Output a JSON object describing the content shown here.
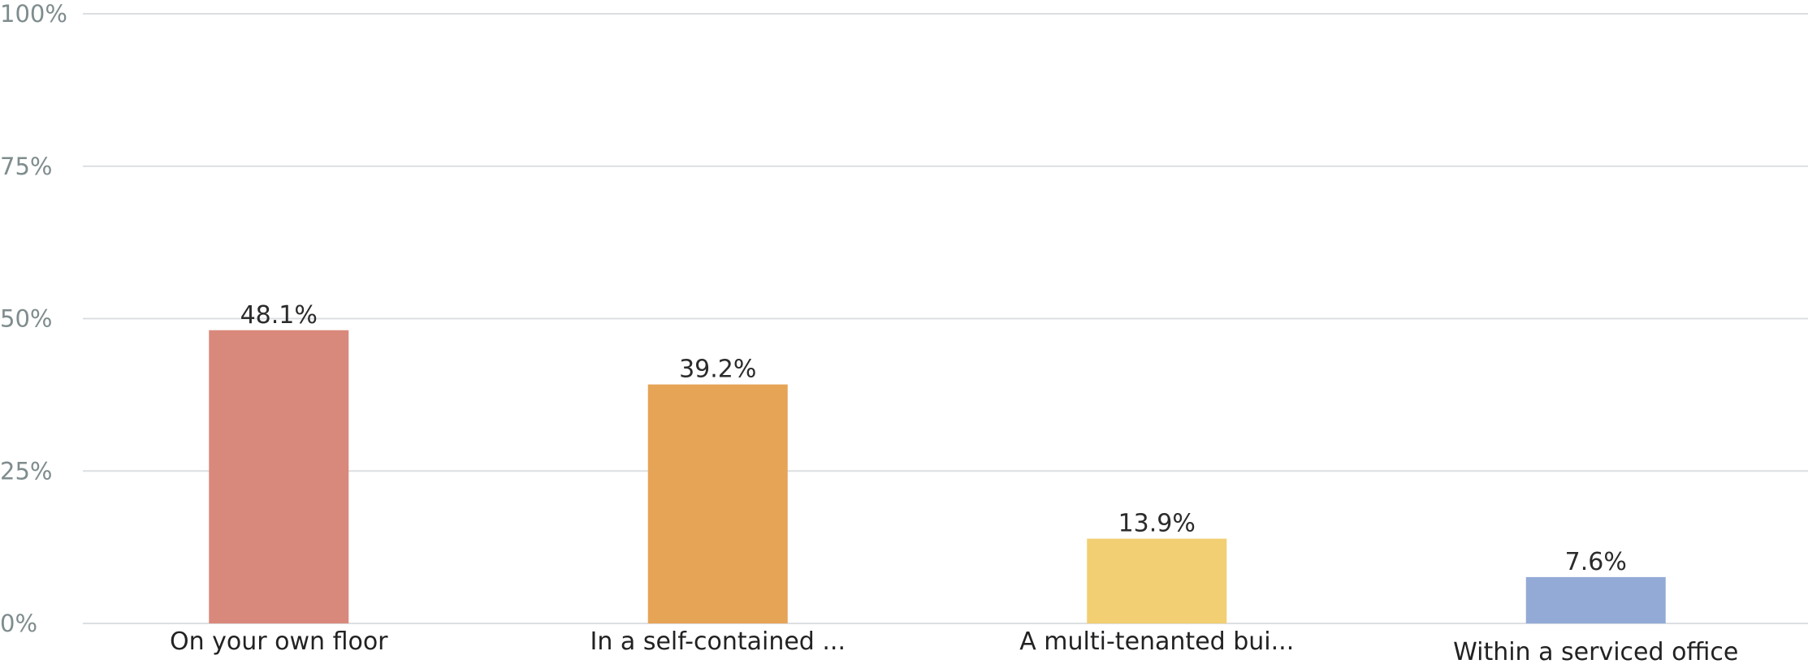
{
  "chart_data": {
    "type": "bar",
    "title": "",
    "xlabel": "",
    "ylabel": "",
    "categories": [
      "On your own floor",
      "In a self-contained ...",
      "A multi-tenanted bui...",
      "Within a serviced office"
    ],
    "values": [
      48.1,
      39.2,
      13.9,
      7.6
    ],
    "value_labels": [
      "48.1%",
      "39.2%",
      "13.9%",
      "7.6%"
    ],
    "colors": [
      "#d9897c",
      "#e6a457",
      "#f1cf72",
      "#93aad6"
    ],
    "ylim": [
      0,
      100
    ],
    "yticks": [
      0,
      25,
      50,
      75,
      100
    ],
    "ytick_labels": [
      "0%",
      "25%",
      "50%",
      "75%",
      "100%"
    ],
    "grid": true,
    "legend": "none"
  }
}
